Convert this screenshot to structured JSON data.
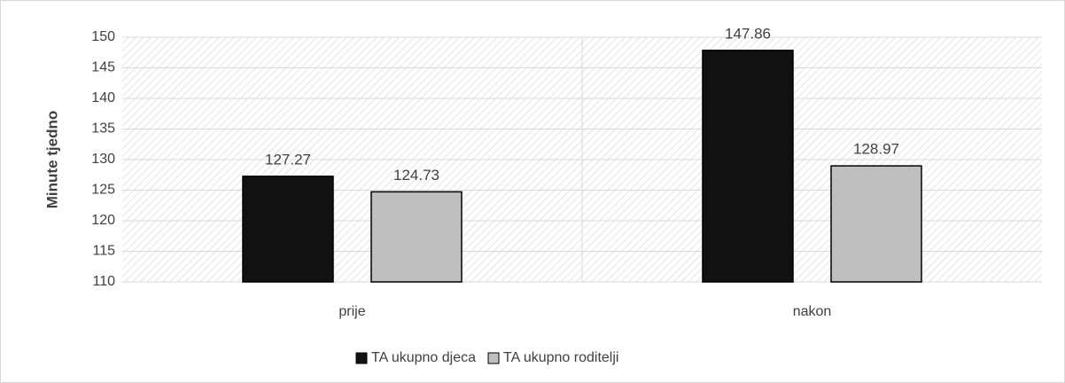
{
  "chart_data": {
    "type": "bar",
    "categories": [
      "prije",
      "nakon"
    ],
    "series": [
      {
        "name": "TA ukupno djeca",
        "color": "#111111",
        "values": [
          127.27,
          147.86
        ]
      },
      {
        "name": "TA ukupno roditelji",
        "color": "#bfbfbf",
        "values": [
          124.73,
          128.97
        ]
      }
    ],
    "y_label": "Minute tjedno",
    "ylim": [
      110,
      150
    ],
    "yticks": [
      110,
      115,
      120,
      125,
      130,
      135,
      140,
      145,
      150
    ],
    "grid": true,
    "legend": "bottom"
  }
}
